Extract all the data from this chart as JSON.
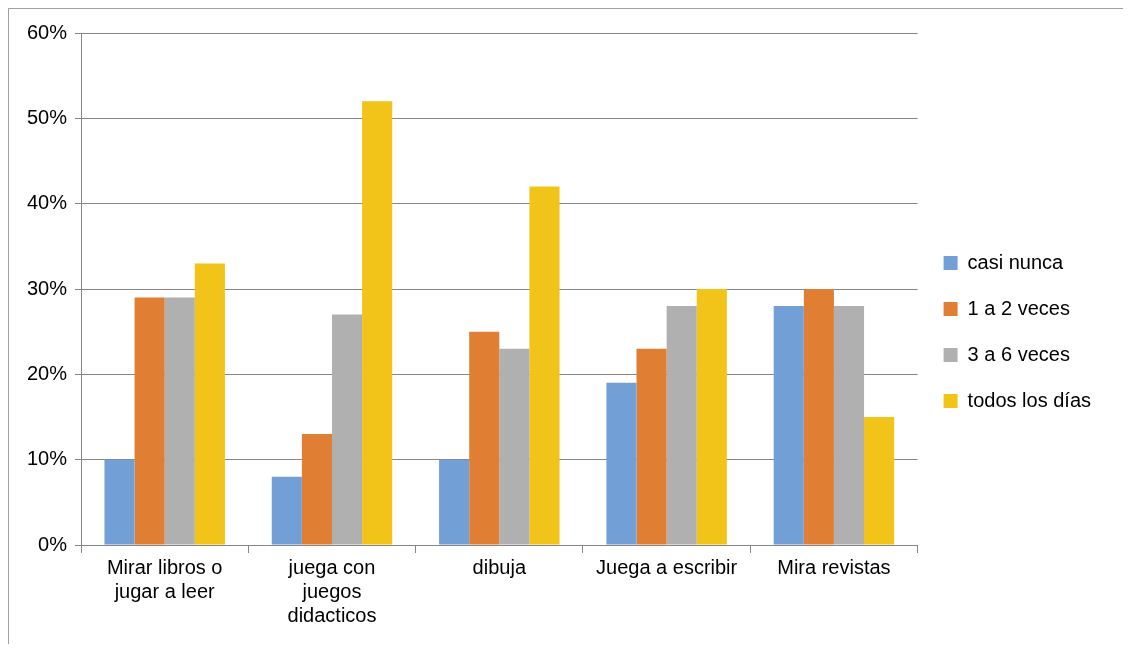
{
  "chart_data": {
    "type": "bar",
    "categories": [
      "Mirar libros o jugar a leer",
      "juega con juegos didacticos",
      "dibuja",
      "Juega a escribir",
      "Mira revistas"
    ],
    "series": [
      {
        "name": "casi nunca",
        "color": "#729fd6",
        "values": [
          10,
          8,
          10,
          19,
          28
        ]
      },
      {
        "name": "1 a 2 veces",
        "color": "#e07f34",
        "values": [
          29,
          13,
          25,
          23,
          30
        ]
      },
      {
        "name": "3 a 6 veces",
        "color": "#b0b0b0",
        "values": [
          29,
          27,
          23,
          28,
          28
        ]
      },
      {
        "name": "todos los días",
        "color": "#f2c318",
        "values": [
          33,
          52,
          42,
          30,
          15
        ]
      }
    ],
    "ylim": [
      0,
      60
    ],
    "yticks": [
      {
        "value": 0,
        "label": "0%"
      },
      {
        "value": 10,
        "label": "10%"
      },
      {
        "value": 20,
        "label": "20%"
      },
      {
        "value": 30,
        "label": "30%"
      },
      {
        "value": 40,
        "label": "40%"
      },
      {
        "value": 50,
        "label": "50%"
      },
      {
        "value": 60,
        "label": "60%"
      }
    ],
    "grid": "y",
    "legend": "right"
  }
}
